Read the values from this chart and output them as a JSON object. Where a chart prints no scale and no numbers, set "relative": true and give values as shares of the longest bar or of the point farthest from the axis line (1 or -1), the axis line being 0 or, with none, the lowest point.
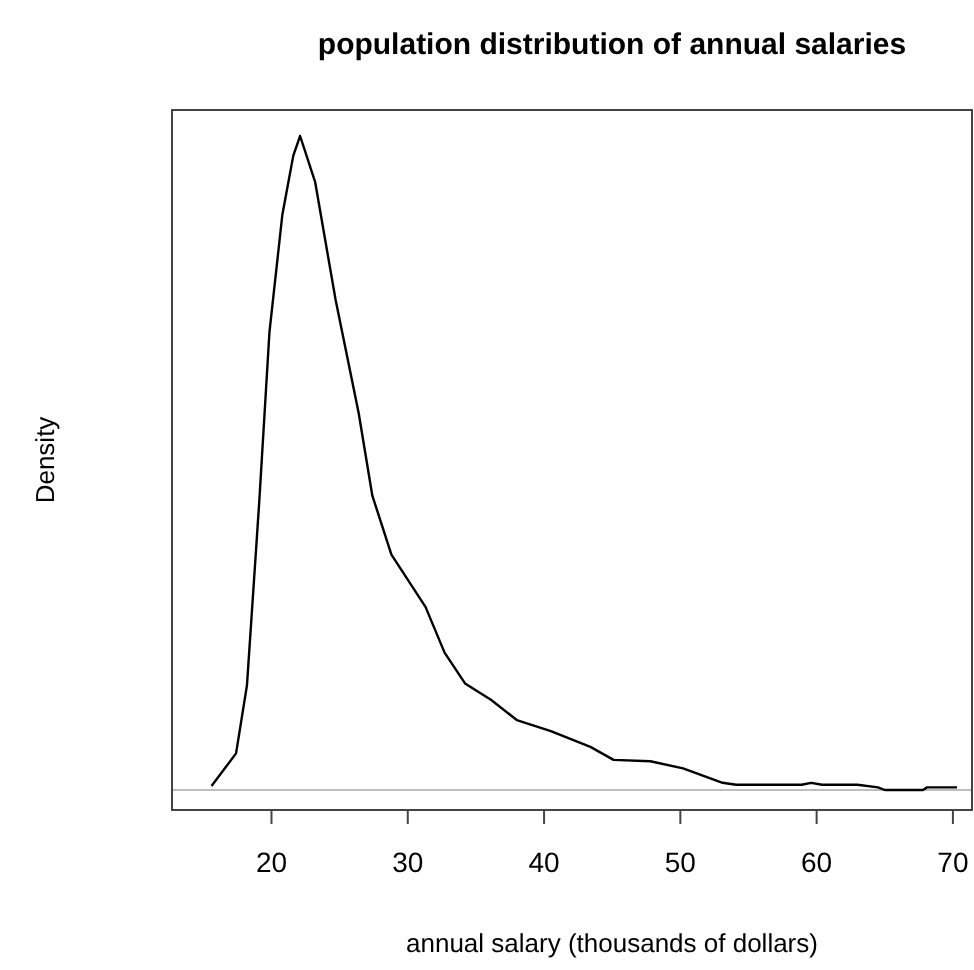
{
  "chart_data": {
    "type": "line",
    "relative": true,
    "title": "population distribution of annual salaries",
    "xlabel": "annual salary (thousands of dollars)",
    "ylabel": "Density",
    "xlim": [
      12.7,
      71.4
    ],
    "xticks": [
      20,
      30,
      40,
      50,
      60,
      70
    ],
    "grid": false,
    "marker": "none",
    "line_style": "solid",
    "ref_lines": [
      {
        "axis": "y",
        "value": 0,
        "color": "#bebebe"
      }
    ],
    "series": [
      {
        "color": "#000000",
        "x": [
          15.6,
          17.4,
          18.2,
          19.1,
          19.85,
          20.8,
          21.6,
          22.1,
          23.2,
          24.7,
          26.4,
          27.4,
          28.8,
          31.3,
          32.7,
          34.2,
          36.1,
          38.0,
          40.5,
          43.4,
          45.1,
          47.8,
          50.2,
          53.1,
          54.1,
          58.9,
          59.6,
          60.4,
          63.0,
          64.5,
          65.0,
          67.8,
          68.1,
          70.3
        ],
        "values": [
          0.006,
          0.056,
          0.16,
          0.44,
          0.7,
          0.88,
          0.97,
          1.0,
          0.93,
          0.75,
          0.576,
          0.45,
          0.36,
          0.28,
          0.21,
          0.163,
          0.138,
          0.107,
          0.09,
          0.066,
          0.046,
          0.044,
          0.033,
          0.011,
          0.008,
          0.008,
          0.011,
          0.008,
          0.008,
          0.004,
          0,
          0,
          0.004,
          0.004
        ]
      }
    ]
  }
}
